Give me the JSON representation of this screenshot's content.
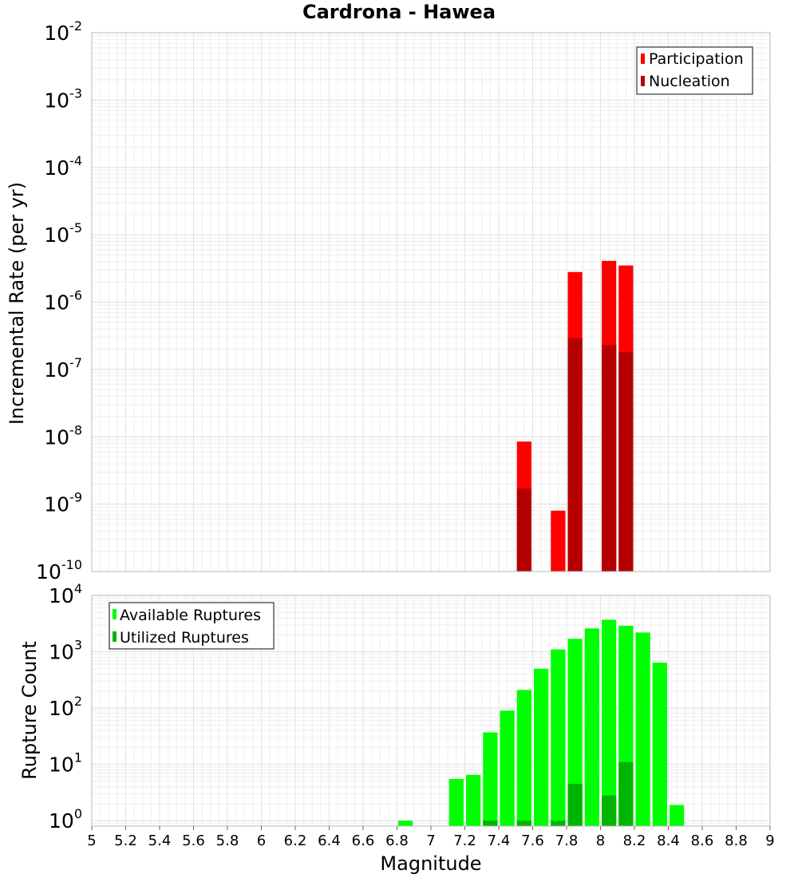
{
  "title": "Cardrona - Hawea",
  "chart_data": [
    {
      "type": "bar",
      "ylabel": "Incremental Rate (per yr)",
      "yscale": "log",
      "ylim": [
        1e-10,
        0.01
      ],
      "xlim": [
        5,
        9
      ],
      "bin_width": 0.1,
      "grid": true,
      "legend_position": "top-right",
      "y_tick_labels": [
        "10-10",
        "10-9",
        "10-8",
        "10-7",
        "10-6",
        "10-5",
        "10-4",
        "10-3",
        "10-2"
      ],
      "series": [
        {
          "name": "Participation",
          "color": "#ff0000",
          "x": [
            7.55,
            7.75,
            7.85,
            8.05,
            8.15
          ],
          "values": [
            8.5e-09,
            8e-10,
            2.8e-06,
            4.1e-06,
            3.5e-06
          ]
        },
        {
          "name": "Nucleation",
          "color": "#b40000",
          "x": [
            7.55,
            7.85,
            8.05,
            8.15
          ],
          "values": [
            1.7e-09,
            2.9e-07,
            2.3e-07,
            1.8e-07
          ]
        }
      ]
    },
    {
      "type": "bar",
      "xlabel": "Magnitude",
      "ylabel": "Rupture Count",
      "yscale": "log",
      "ylim": [
        0.8,
        10000
      ],
      "xlim": [
        5,
        9
      ],
      "bin_width": 0.1,
      "grid": true,
      "legend_position": "top-left",
      "x_ticks": [
        "5",
        "5.2",
        "5.4",
        "5.6",
        "5.8",
        "6",
        "6.2",
        "6.4",
        "6.6",
        "6.8",
        "7",
        "7.2",
        "7.4",
        "7.6",
        "7.8",
        "8",
        "8.2",
        "8.4",
        "8.6",
        "8.8",
        "9"
      ],
      "y_tick_labels": [
        "100",
        "101",
        "102",
        "103",
        "104"
      ],
      "series": [
        {
          "name": "Available Ruptures",
          "color": "#00ff00",
          "x": [
            6.85,
            7.15,
            7.25,
            7.35,
            7.45,
            7.55,
            7.65,
            7.75,
            7.85,
            7.95,
            8.05,
            8.15,
            8.25,
            8.35,
            8.45
          ],
          "values": [
            1,
            5.5,
            6.5,
            37,
            90,
            210,
            500,
            1100,
            1700,
            2600,
            3700,
            2900,
            2200,
            640,
            1.9
          ]
        },
        {
          "name": "Utilized Ruptures",
          "color": "#00b400",
          "x": [
            7.35,
            7.55,
            7.75,
            7.85,
            8.05,
            8.15
          ],
          "values": [
            1,
            1,
            1,
            4.5,
            2.8,
            11
          ]
        }
      ]
    }
  ]
}
